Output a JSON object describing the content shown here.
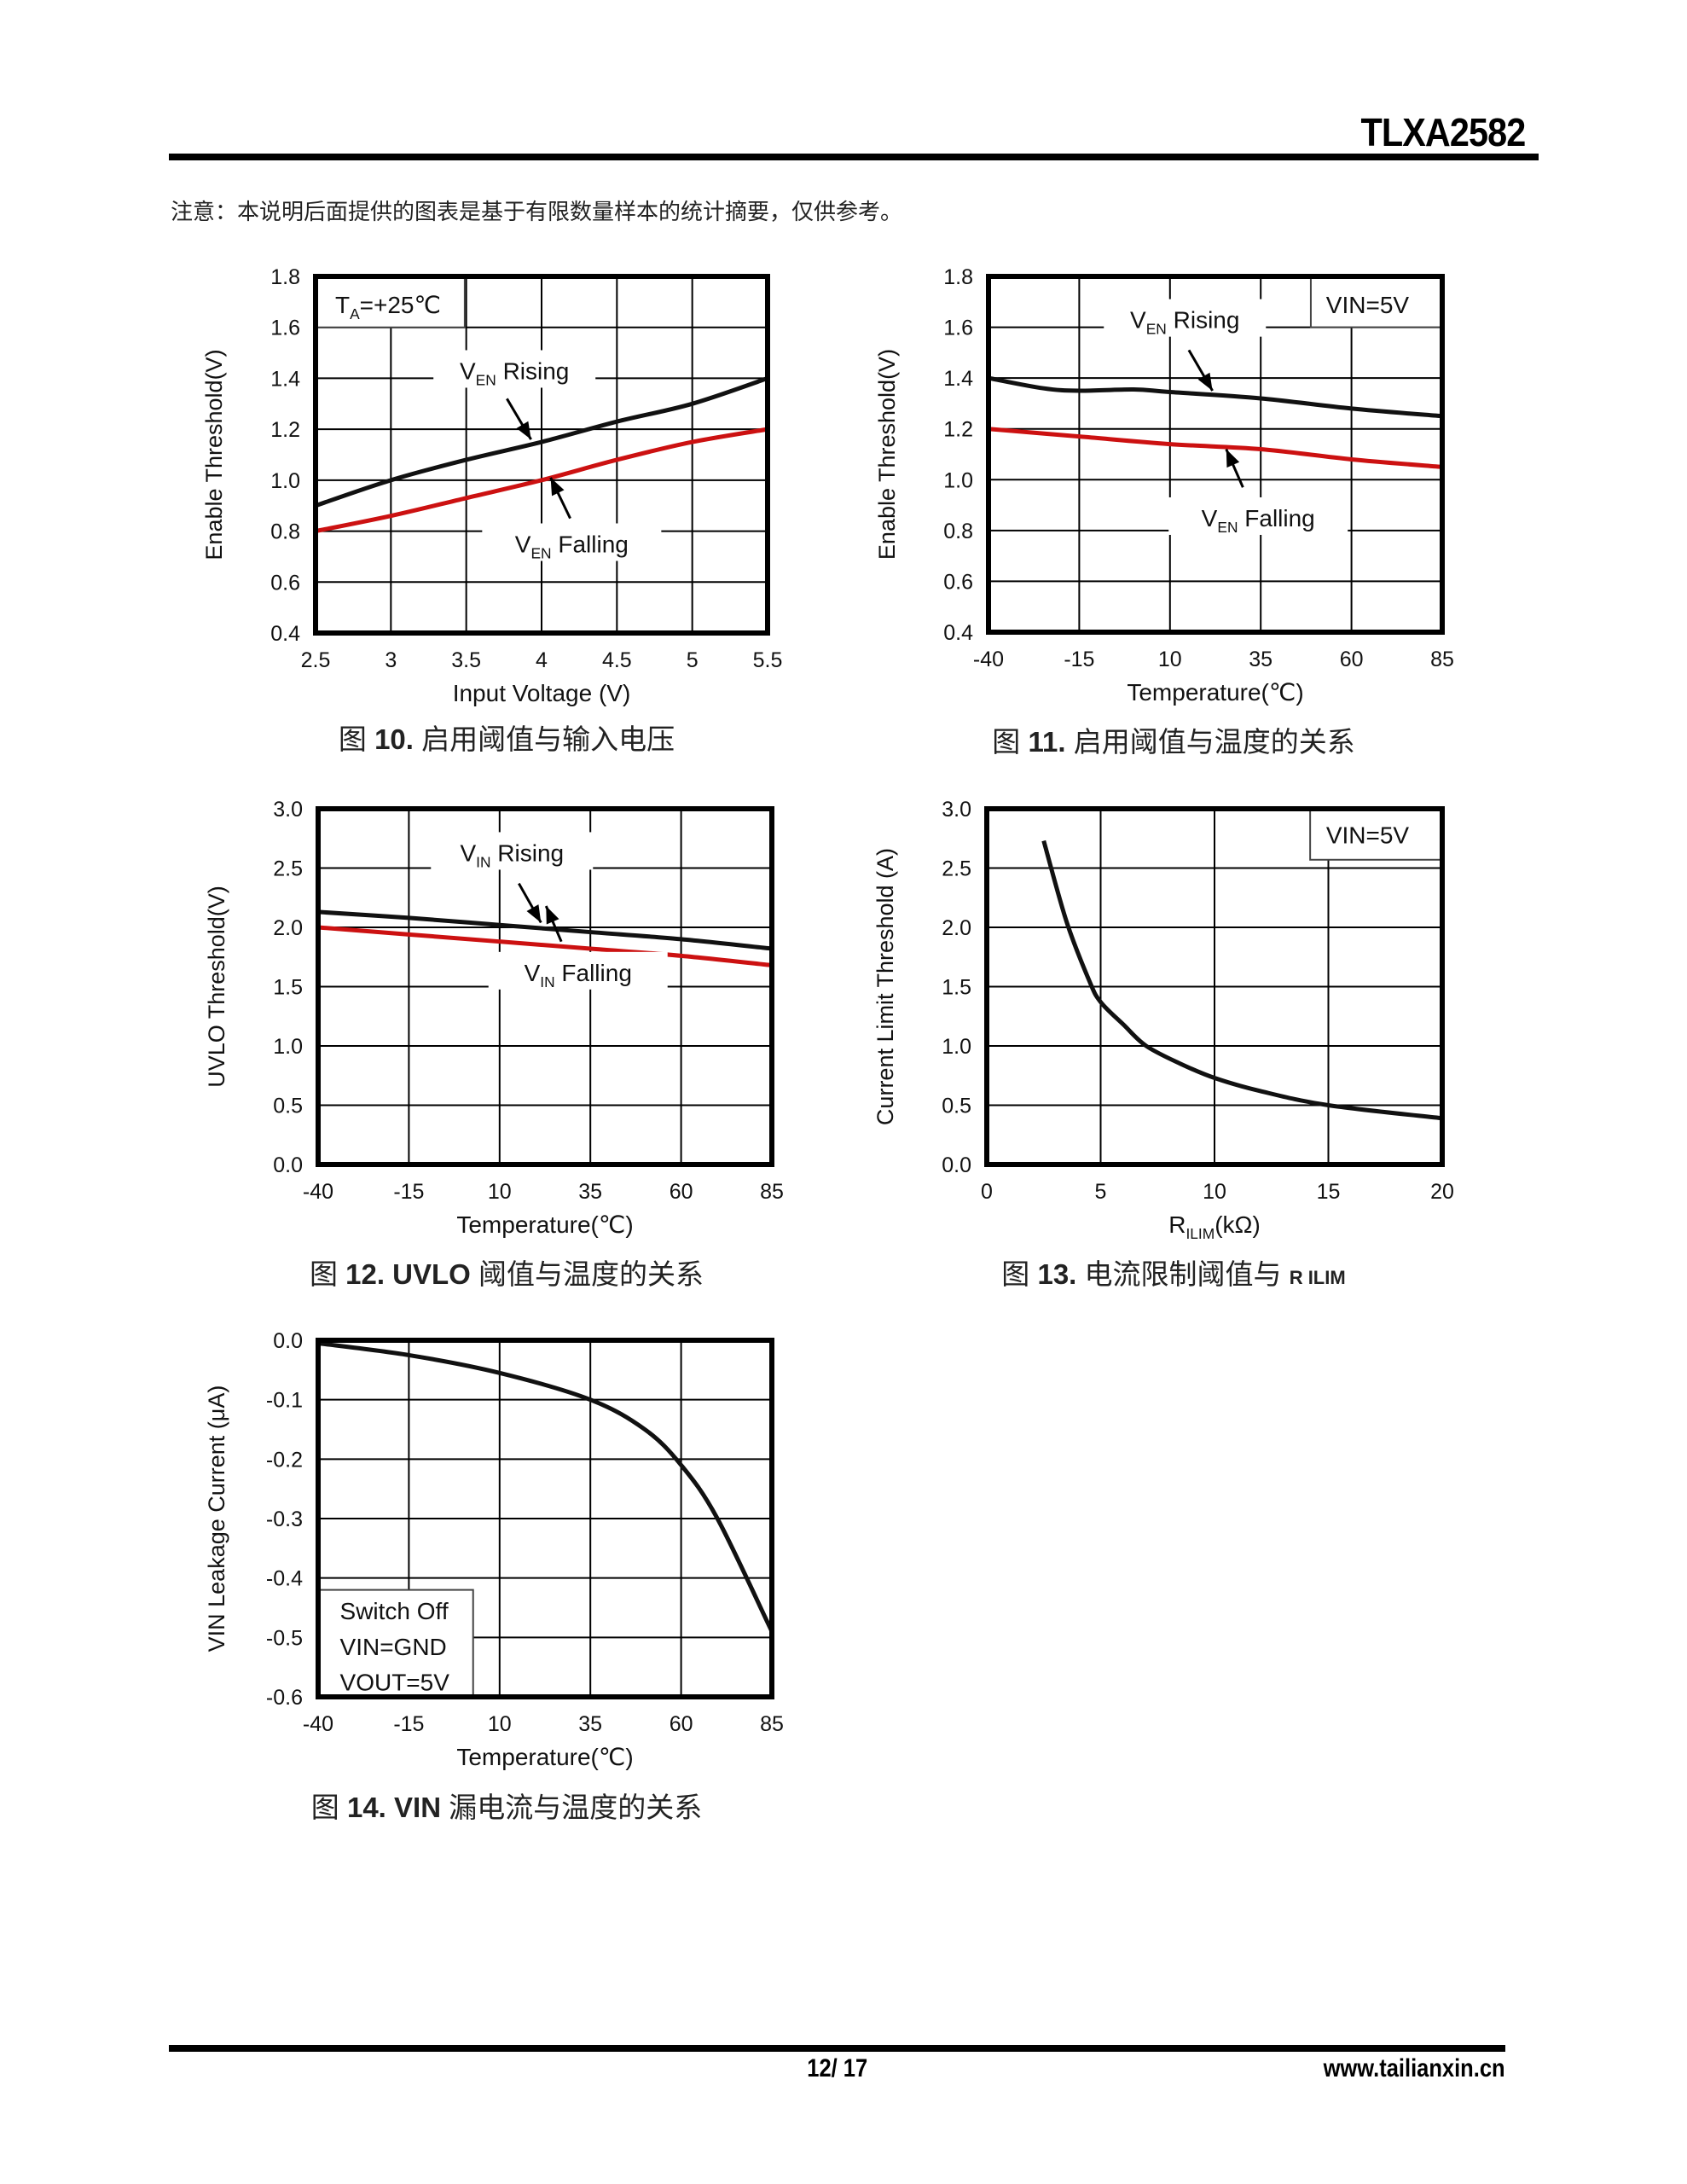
{
  "header": {
    "doc_title": "TLXA2582"
  },
  "note": "注意：本说明后面提供的图表是基于有限数量样本的统计摘要，仅供参考。",
  "footer": {
    "page": "12/ 17",
    "website": "www.tailianxin.cn"
  },
  "captions": [
    {
      "prefix": "图 ",
      "num": "10.",
      "text": " 启用阈值与输入电压",
      "sub": ""
    },
    {
      "prefix": "图 ",
      "num": "11.",
      "text": " 启用阈值与温度的关系",
      "sub": ""
    },
    {
      "prefix": "图 ",
      "num": "12. UVLO",
      "text": " 阈值与温度的关系",
      "sub": ""
    },
    {
      "prefix": "图 ",
      "num": "13.",
      "text": " 电流限制阈值与 ",
      "sub": "R ILIM"
    },
    {
      "prefix": "图 ",
      "num": "14. VIN",
      "text": " 漏电流与温度的关系",
      "sub": ""
    }
  ],
  "colors": {
    "rising": "#111111",
    "falling": "#cc1111",
    "grid": "#000000"
  },
  "chart_data": [
    {
      "type": "line",
      "xlabel": {
        "main": "Input Voltage (V)",
        "sub": "",
        "rest": ""
      },
      "ylabel": "Enable Threshold(V)",
      "xlim": [
        2.5,
        5.5
      ],
      "ylim": [
        0.4,
        1.8
      ],
      "grid": true,
      "xticks": [
        "2.5",
        "3",
        "3.5",
        "4",
        "4.5",
        "5",
        "5.5"
      ],
      "yticks": [
        "0.4",
        "0.6",
        "0.8",
        "1.0",
        "1.2",
        "1.4",
        "1.6",
        "1.8"
      ],
      "condition": [
        {
          "main": "T",
          "sub": "A",
          "rest": "=+25℃"
        }
      ],
      "series": [
        {
          "name": {
            "main": "V",
            "sub": "EN",
            "rest": " Rising"
          },
          "color": "#111111",
          "points": [
            [
              2.5,
              0.9
            ],
            [
              3,
              1.0
            ],
            [
              3.5,
              1.08
            ],
            [
              4,
              1.15
            ],
            [
              4.5,
              1.23
            ],
            [
              5,
              1.3
            ],
            [
              5.5,
              1.4
            ]
          ]
        },
        {
          "name": {
            "main": "V",
            "sub": "EN",
            "rest": " Falling"
          },
          "color": "#cc1111",
          "points": [
            [
              2.5,
              0.8
            ],
            [
              3,
              0.86
            ],
            [
              3.5,
              0.93
            ],
            [
              4,
              1.0
            ],
            [
              4.5,
              1.08
            ],
            [
              5,
              1.15
            ],
            [
              5.5,
              1.2
            ]
          ]
        }
      ]
    },
    {
      "type": "line",
      "xlabel": {
        "main": "Temperature(℃)",
        "sub": "",
        "rest": ""
      },
      "ylabel": "Enable Threshold(V)",
      "xlim": [
        -40,
        85
      ],
      "ylim": [
        0.4,
        1.8
      ],
      "grid": true,
      "xticks": [
        "-40",
        "-15",
        "10",
        "35",
        "60",
        "85"
      ],
      "yticks": [
        "0.4",
        "0.6",
        "0.8",
        "1.0",
        "1.2",
        "1.4",
        "1.6",
        "1.8"
      ],
      "condition": [
        {
          "main": "VIN=5V",
          "sub": "",
          "rest": ""
        }
      ],
      "series": [
        {
          "name": {
            "main": "V",
            "sub": "EN",
            "rest": " Rising"
          },
          "color": "#111111",
          "points": [
            [
              -40,
              1.4
            ],
            [
              -25,
              1.36
            ],
            [
              -15,
              1.35
            ],
            [
              0,
              1.355
            ],
            [
              10,
              1.345
            ],
            [
              35,
              1.32
            ],
            [
              60,
              1.28
            ],
            [
              85,
              1.25
            ]
          ]
        },
        {
          "name": {
            "main": "V",
            "sub": "EN",
            "rest": " Falling"
          },
          "color": "#cc1111",
          "points": [
            [
              -40,
              1.2
            ],
            [
              -15,
              1.17
            ],
            [
              10,
              1.14
            ],
            [
              35,
              1.12
            ],
            [
              60,
              1.08
            ],
            [
              85,
              1.05
            ]
          ]
        }
      ]
    },
    {
      "type": "line",
      "xlabel": {
        "main": "Temperature(℃)",
        "sub": "",
        "rest": ""
      },
      "ylabel": "UVLO Threshold(V)",
      "xlim": [
        -40,
        85
      ],
      "ylim": [
        0,
        3
      ],
      "grid": true,
      "xticks": [
        "-40",
        "-15",
        "10",
        "35",
        "60",
        "85"
      ],
      "yticks": [
        "0.0",
        "0.5",
        "1.0",
        "1.5",
        "2.0",
        "2.5",
        "3.0"
      ],
      "condition": [],
      "series": [
        {
          "name": {
            "main": "V",
            "sub": "IN",
            "rest": " Rising"
          },
          "color": "#111111",
          "points": [
            [
              -40,
              2.13
            ],
            [
              -15,
              2.08
            ],
            [
              10,
              2.02
            ],
            [
              35,
              1.96
            ],
            [
              60,
              1.9
            ],
            [
              85,
              1.82
            ]
          ]
        },
        {
          "name": {
            "main": "V",
            "sub": "IN",
            "rest": " Falling"
          },
          "color": "#cc1111",
          "points": [
            [
              -40,
              2.0
            ],
            [
              -15,
              1.94
            ],
            [
              10,
              1.88
            ],
            [
              35,
              1.82
            ],
            [
              60,
              1.76
            ],
            [
              85,
              1.68
            ]
          ]
        }
      ]
    },
    {
      "type": "line",
      "xlabel": {
        "main": "R",
        "sub": "ILIM",
        "rest": "(kΩ)"
      },
      "ylabel": "Current Limit Threshold (A)",
      "xlim": [
        0,
        20
      ],
      "ylim": [
        0,
        3
      ],
      "grid": true,
      "xticks": [
        "0",
        "5",
        "10",
        "15",
        "20"
      ],
      "yticks": [
        "0.0",
        "0.5",
        "1.0",
        "1.5",
        "2.0",
        "2.5",
        "3.0"
      ],
      "condition": [
        {
          "main": "VIN=5V",
          "sub": "",
          "rest": ""
        }
      ],
      "series": [
        {
          "color": "#111111",
          "points": [
            [
              2.5,
              2.73
            ],
            [
              3.5,
              2.05
            ],
            [
              4.5,
              1.55
            ],
            [
              5,
              1.37
            ],
            [
              6,
              1.18
            ],
            [
              7,
              1.0
            ],
            [
              8.5,
              0.85
            ],
            [
              10,
              0.73
            ],
            [
              12,
              0.62
            ],
            [
              15,
              0.5
            ],
            [
              20,
              0.39
            ]
          ]
        }
      ]
    },
    {
      "type": "line",
      "xlabel": {
        "main": "Temperature(℃)",
        "sub": "",
        "rest": ""
      },
      "ylabel": "VIN Leakage Current (μA)",
      "xlim": [
        -40,
        85
      ],
      "ylim": [
        -0.6,
        0
      ],
      "grid": true,
      "xticks": [
        "-40",
        "-15",
        "10",
        "35",
        "60",
        "85"
      ],
      "yticks": [
        "-0.6",
        "-0.5",
        "-0.4",
        "-0.3",
        "-0.2",
        "-0.1",
        "0.0"
      ],
      "condition": [
        {
          "main": "Switch Off",
          "sub": "",
          "rest": ""
        },
        {
          "main": "VIN=GND",
          "sub": "",
          "rest": ""
        },
        {
          "main": "VOUT=5V",
          "sub": "",
          "rest": ""
        }
      ],
      "series": [
        {
          "color": "#111111",
          "points": [
            [
              -40,
              -0.005
            ],
            [
              -15,
              -0.025
            ],
            [
              10,
              -0.055
            ],
            [
              35,
              -0.1
            ],
            [
              50,
              -0.15
            ],
            [
              60,
              -0.21
            ],
            [
              70,
              -0.3
            ],
            [
              85,
              -0.49
            ]
          ]
        }
      ]
    }
  ]
}
